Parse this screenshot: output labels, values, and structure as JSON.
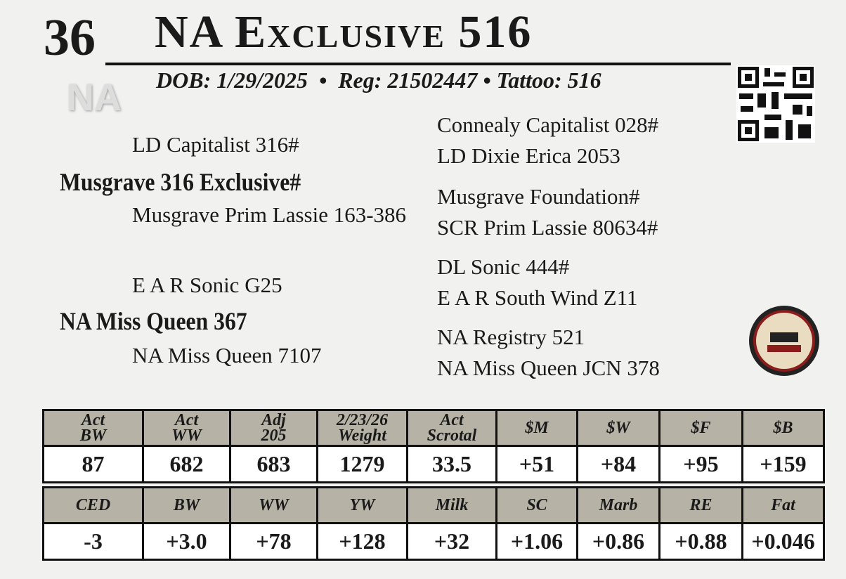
{
  "header": {
    "lot": "36",
    "name": "NA Exclusive 516",
    "dob": "DOB: 1/29/2025",
    "reg": "Reg: 21502447",
    "tattoo": "Tattoo: 516",
    "logo": "NA"
  },
  "pedigree": {
    "sire": "Musgrave 316 Exclusive#",
    "sire_sire": "LD Capitalist 316#",
    "sire_dam": "Musgrave Prim Lassie 163-386",
    "dam": "NA Miss Queen 367",
    "dam_sire": "E A R Sonic G25",
    "dam_dam": "NA Miss Queen 7107",
    "grand": [
      "Connealy Capitalist 028#",
      "LD Dixie Erica 2053",
      "Musgrave Foundation#",
      "SCR Prim Lassie 80634#",
      "DL Sonic 444#",
      "E A R South Wind Z11",
      "NA Registry 521",
      "NA Miss Queen JCN 378"
    ]
  },
  "tables": [
    {
      "headers": [
        [
          "Act",
          "BW"
        ],
        [
          "Act",
          "WW"
        ],
        [
          "Adj",
          "205"
        ],
        [
          "2/23/26",
          "Weight"
        ],
        [
          "Act",
          "Scrotal"
        ],
        [
          "$M"
        ],
        [
          "$W"
        ],
        [
          "$F"
        ],
        [
          "$B"
        ]
      ],
      "values": [
        "87",
        "682",
        "683",
        "1279",
        "33.5",
        "+51",
        "+84",
        "+95",
        "+159"
      ]
    },
    {
      "headers": [
        [
          "CED"
        ],
        [
          "BW"
        ],
        [
          "WW"
        ],
        [
          "YW"
        ],
        [
          "Milk"
        ],
        [
          "SC"
        ],
        [
          "Marb"
        ],
        [
          "RE"
        ],
        [
          "Fat"
        ]
      ],
      "values": [
        "-3",
        "+3.0",
        "+78",
        "+128",
        "+32",
        "+1.06",
        "+0.86",
        "+0.88",
        "+0.046"
      ]
    }
  ]
}
